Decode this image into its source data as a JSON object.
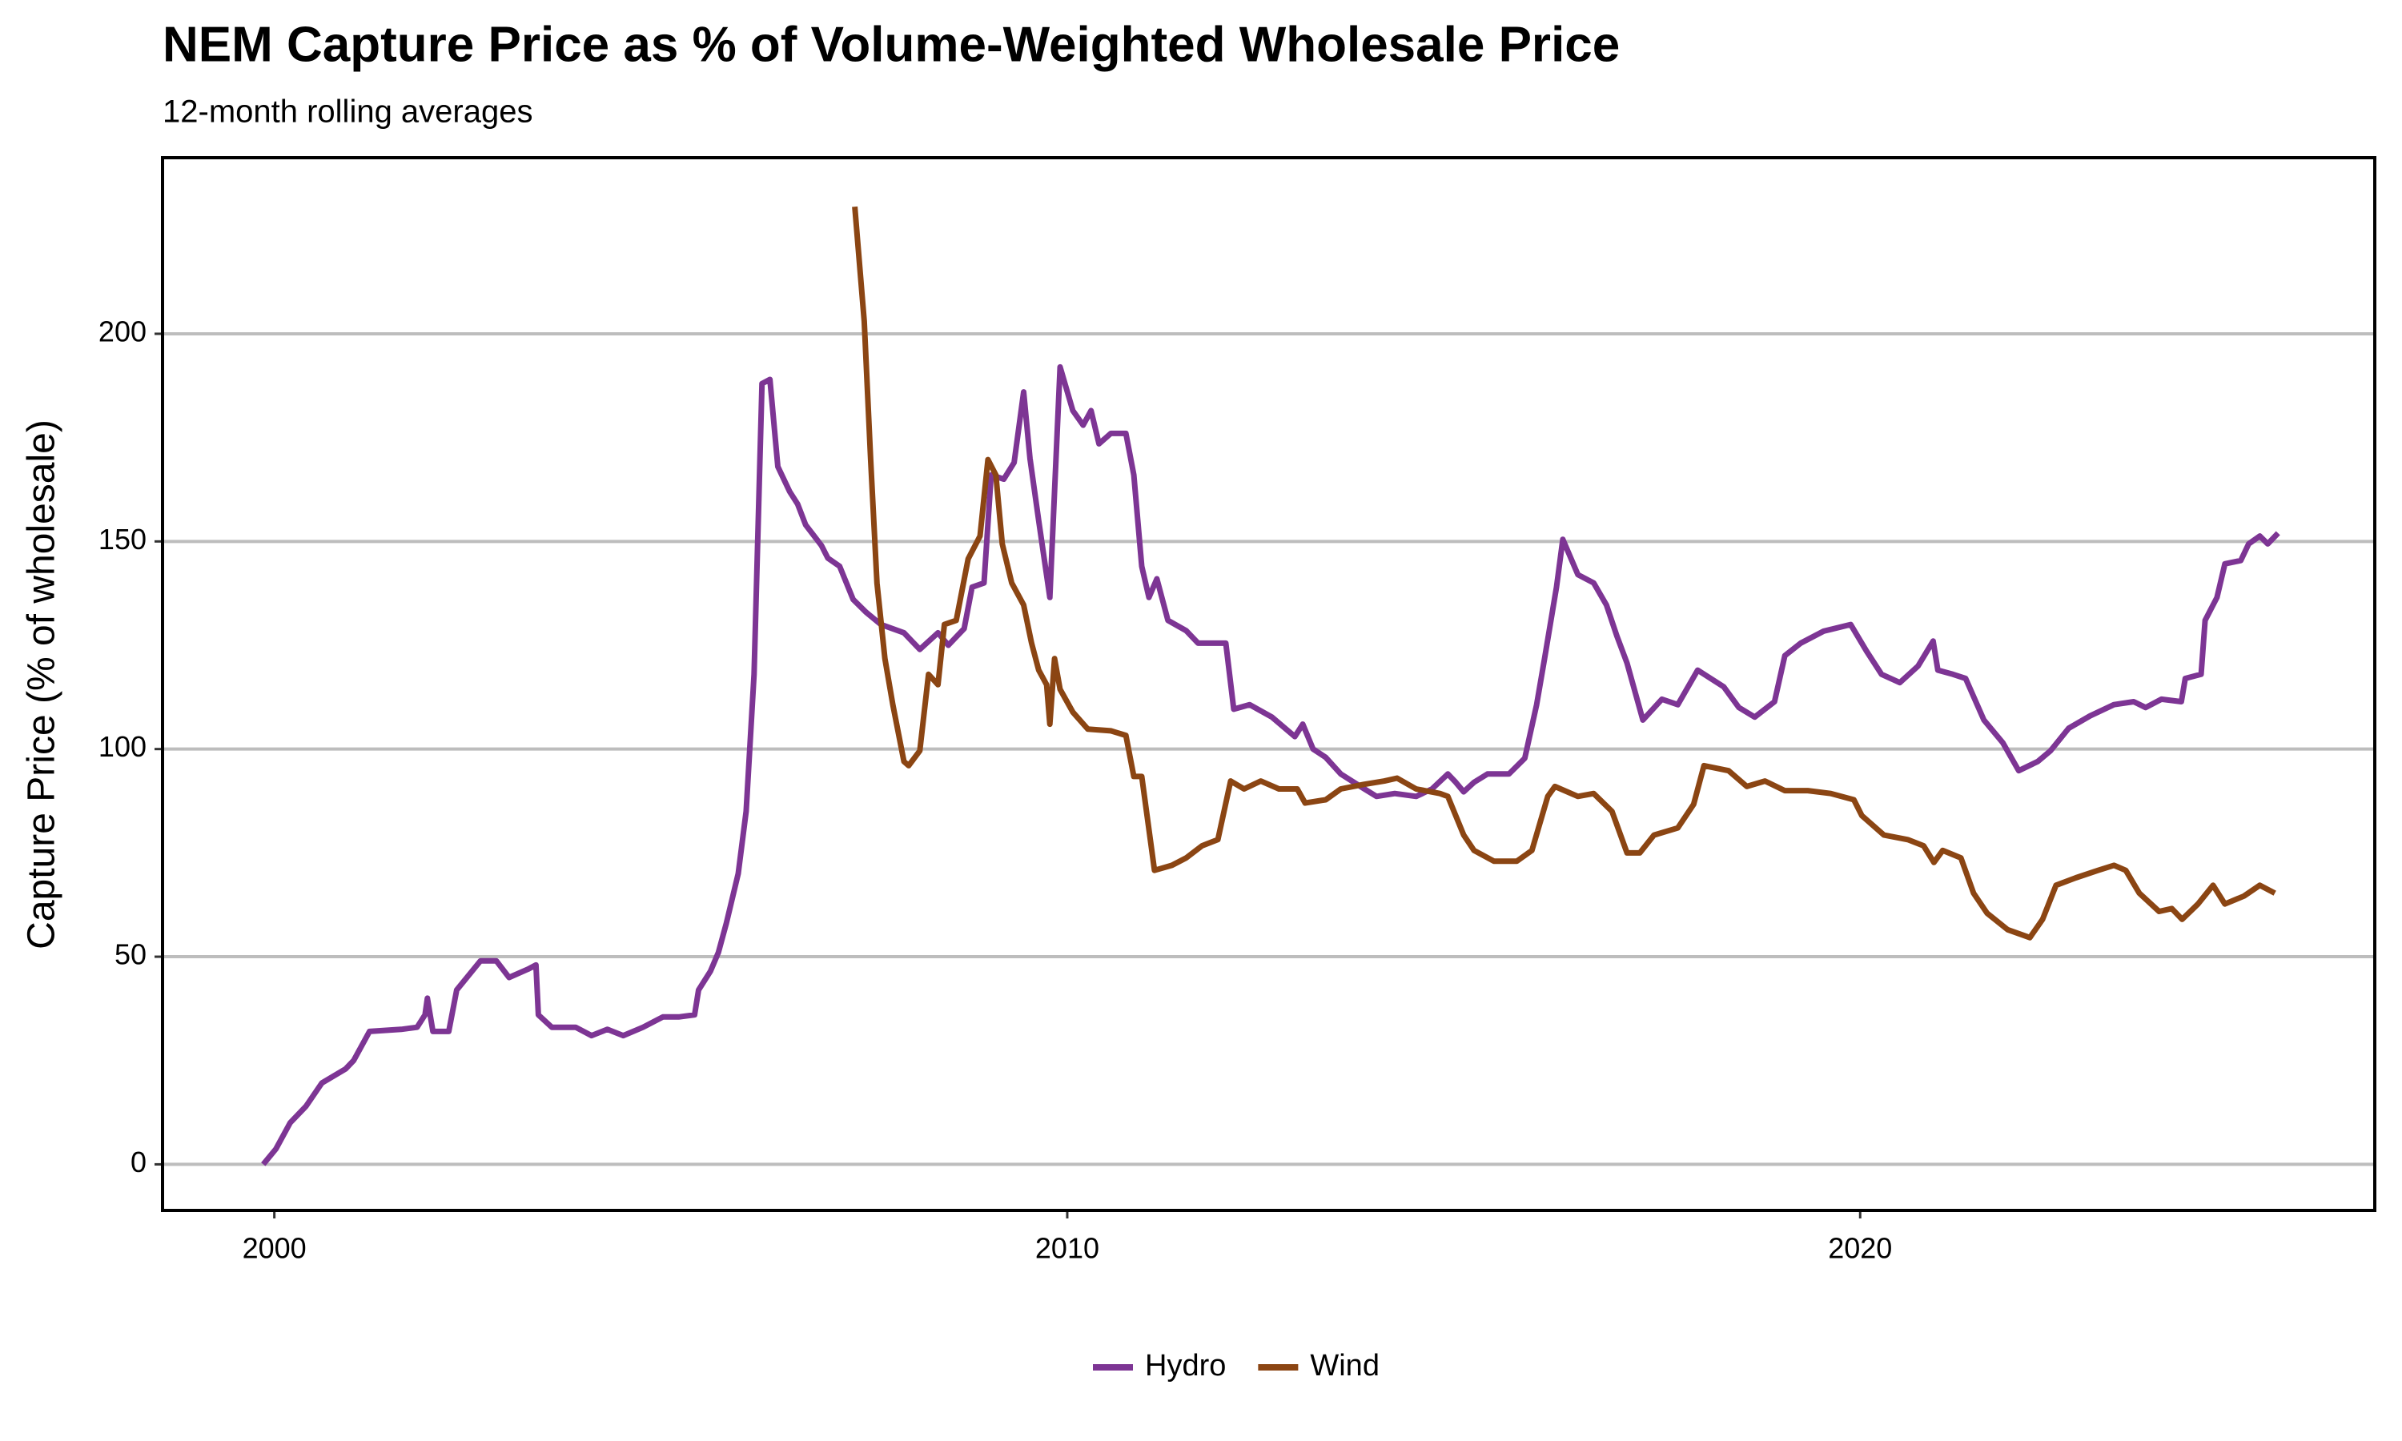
{
  "chart_data": {
    "type": "line",
    "title": "NEM Capture Price as % of Volume-Weighted Wholesale Price",
    "subtitle": "12-month rolling averages",
    "y_label": "Capture Price (% of wholesale)",
    "xlim": [
      1998.59,
      2026.49
    ],
    "xticks": [
      2000,
      2010,
      2020
    ],
    "ylim": [
      -11.1,
      242.4
    ],
    "yticks": [
      0,
      50,
      100,
      150,
      200
    ],
    "grid": true,
    "legend": "bottom",
    "series": [
      {
        "name": "Hydro",
        "color": "#7d3594",
        "x": [
          1999.86,
          2000.02,
          2000.2,
          2000.4,
          2000.6,
          2000.9,
          2001.0,
          2001.2,
          2001.6,
          2001.8,
          2001.9,
          2001.93,
          2002.0,
          2002.2,
          2002.3,
          2002.6,
          2002.8,
          2002.96,
          2003.2,
          2003.3,
          2003.33,
          2003.5,
          2003.8,
          2004.0,
          2004.2,
          2004.4,
          2004.65,
          2004.9,
          2005.1,
          2005.3,
          2005.35,
          2005.5,
          2005.6,
          2005.7,
          2005.85,
          2005.95,
          2006.05,
          2006.15,
          2006.25,
          2006.35,
          2006.5,
          2006.6,
          2006.7,
          2006.9,
          2006.98,
          2007.13,
          2007.3,
          2007.46,
          2007.65,
          2007.94,
          2008.14,
          2008.37,
          2008.5,
          2008.7,
          2008.8,
          2008.95,
          2009.04,
          2009.2,
          2009.33,
          2009.45,
          2009.53,
          2009.64,
          2009.78,
          2009.91,
          2010.07,
          2010.2,
          2010.3,
          2010.4,
          2010.55,
          2010.74,
          2010.84,
          2010.94,
          2011.03,
          2011.13,
          2011.27,
          2011.5,
          2011.65,
          2011.9,
          2012.0,
          2012.1,
          2012.3,
          2012.58,
          2012.87,
          2012.97,
          2013.1,
          2013.26,
          2013.45,
          2013.74,
          2013.9,
          2014.13,
          2014.4,
          2014.6,
          2014.8,
          2014.9,
          2015.0,
          2015.13,
          2015.3,
          2015.57,
          2015.77,
          2015.92,
          2016.02,
          2016.17,
          2016.25,
          2016.44,
          2016.64,
          2016.8,
          2016.93,
          2017.06,
          2017.26,
          2017.5,
          2017.7,
          2017.95,
          2018.28,
          2018.47,
          2018.67,
          2018.92,
          2019.05,
          2019.25,
          2019.54,
          2019.88,
          2020.08,
          2020.27,
          2020.5,
          2020.73,
          2020.92,
          2020.98,
          2021.17,
          2021.33,
          2021.56,
          2021.8,
          2022.0,
          2022.24,
          2022.4,
          2022.63,
          2022.9,
          2023.2,
          2023.45,
          2023.6,
          2023.8,
          2024.05,
          2024.1,
          2024.3,
          2024.35,
          2024.5,
          2024.6,
          2024.8,
          2024.9,
          2025.04,
          2025.14,
          2025.27
        ],
        "values": [
          0,
          3.7,
          10,
          14,
          19.6,
          23,
          25,
          32,
          32.5,
          33,
          36,
          40,
          32,
          32,
          42,
          49,
          49,
          45,
          47,
          48,
          36,
          33,
          33,
          31,
          32.5,
          31,
          33,
          35.5,
          35.5,
          36,
          42,
          46.5,
          51,
          58,
          70,
          85,
          118,
          188,
          189,
          168,
          162,
          159,
          154,
          149,
          146,
          144,
          136,
          133,
          130,
          128,
          124,
          128,
          125,
          129,
          139,
          140,
          166,
          165,
          169,
          186,
          170,
          155,
          136.5,
          192,
          181.5,
          178,
          181.5,
          173.5,
          176,
          176,
          166,
          144,
          136.5,
          141,
          131,
          128.5,
          125.5,
          125.5,
          125.5,
          109.6,
          110.7,
          107.7,
          103,
          106,
          100,
          98,
          94,
          90.5,
          88.6,
          89.3,
          88.6,
          90.4,
          94,
          92,
          89.7,
          92,
          94,
          94,
          97.8,
          110.7,
          121.8,
          139,
          150.5,
          142,
          140,
          134.7,
          127.3,
          120.7,
          107,
          112,
          110.7,
          119,
          115,
          110,
          107.7,
          111.4,
          122.5,
          125.5,
          128.4,
          130,
          123.6,
          118,
          116,
          120,
          126,
          119,
          118,
          117,
          107,
          101.5,
          94.8,
          97,
          99.6,
          105,
          108,
          110.7,
          111.4,
          110,
          112,
          111.4,
          117,
          118,
          131,
          136.5,
          144.6,
          145.4,
          149.4,
          151.3,
          149.4,
          152
        ]
      },
      {
        "name": "Wind",
        "color": "#8b4513",
        "x": [
          2007.32,
          2007.44,
          2007.52,
          2007.6,
          2007.7,
          2007.8,
          2007.94,
          2008.0,
          2008.14,
          2008.25,
          2008.37,
          2008.45,
          2008.6,
          2008.75,
          2008.9,
          2009.0,
          2009.1,
          2009.18,
          2009.3,
          2009.45,
          2009.55,
          2009.64,
          2009.74,
          2009.78,
          2009.84,
          2009.91,
          2010.07,
          2010.26,
          2010.55,
          2010.74,
          2010.84,
          2010.94,
          2011.1,
          2011.32,
          2011.5,
          2011.7,
          2011.9,
          2012.06,
          2012.23,
          2012.44,
          2012.67,
          2012.9,
          2013.0,
          2013.26,
          2013.45,
          2013.74,
          2014.0,
          2014.16,
          2014.4,
          2014.7,
          2014.8,
          2015.0,
          2015.13,
          2015.38,
          2015.67,
          2015.86,
          2016.06,
          2016.15,
          2016.44,
          2016.64,
          2016.87,
          2017.06,
          2017.22,
          2017.4,
          2017.7,
          2017.9,
          2018.03,
          2018.34,
          2018.57,
          2018.8,
          2019.05,
          2019.34,
          2019.63,
          2019.92,
          2020.02,
          2020.3,
          2020.6,
          2020.8,
          2020.93,
          2021.04,
          2021.27,
          2021.43,
          2021.6,
          2021.86,
          2022.14,
          2022.3,
          2022.47,
          2022.72,
          2023.0,
          2023.2,
          2023.35,
          2023.52,
          2023.77,
          2023.93,
          2024.06,
          2024.26,
          2024.45,
          2024.6,
          2024.84,
          2025.04,
          2025.23
        ],
        "values": [
          230.6,
          203,
          169.7,
          140,
          121.8,
          110.7,
          97,
          96,
          99.6,
          118,
          115.5,
          130,
          131,
          145.8,
          151.3,
          169.7,
          166,
          149.4,
          140,
          134.7,
          125.5,
          119,
          115.5,
          106,
          121.8,
          114.4,
          108.9,
          104.8,
          104.4,
          103.3,
          93.4,
          93.4,
          70.8,
          72,
          73.8,
          76.7,
          78.2,
          92.3,
          90.4,
          92.3,
          90.4,
          90.4,
          87,
          87.8,
          90.4,
          91.5,
          92.3,
          93,
          90.4,
          89.3,
          88.6,
          79.3,
          75.6,
          73,
          73,
          75.6,
          88.6,
          91,
          88.6,
          89.3,
          85,
          75,
          75,
          79.3,
          81,
          86.7,
          96,
          94.8,
          91,
          92.3,
          90,
          90,
          89.3,
          87.8,
          84,
          79.3,
          78.2,
          76.7,
          72.7,
          75.6,
          73.8,
          65.3,
          60.5,
          56.5,
          54.6,
          59,
          67.2,
          69,
          70.8,
          72,
          70.8,
          65.3,
          60.9,
          61.6,
          59,
          62.7,
          67.2,
          62.7,
          64.6,
          67.2,
          65.3
        ]
      }
    ]
  }
}
